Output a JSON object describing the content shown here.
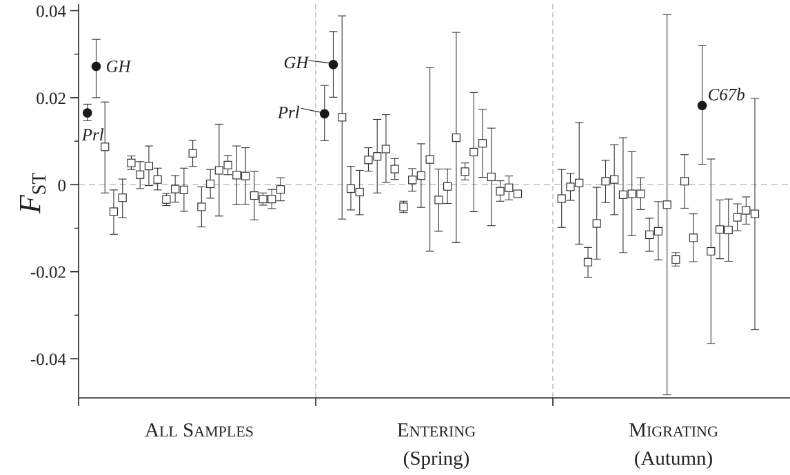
{
  "chart_data": {
    "type": "scatter",
    "title": "",
    "ylabel": "F",
    "ylabel_sub": "ST",
    "ylim": [
      -0.049,
      0.0415
    ],
    "yticks": [
      {
        "value": 0.04,
        "label": "0.04"
      },
      {
        "value": 0.02,
        "label": "0.02"
      },
      {
        "value": 0,
        "label": "0"
      },
      {
        "value": -0.02,
        "label": "-0.02"
      },
      {
        "value": -0.04,
        "label": "-0.04"
      }
    ],
    "zero_line": true,
    "groups": [
      {
        "line1": "ALL SAMPLES",
        "line2": "",
        "from": 0,
        "to": 27
      },
      {
        "line1": "ENTERING",
        "line2": "(Spring)",
        "from": 27,
        "to": 54
      },
      {
        "line1": "MIGRATING",
        "line2": "(Autumn)",
        "from": 54,
        "to": 81
      }
    ],
    "points": [
      {
        "x": 1,
        "y": 0.0165,
        "lo": 0.0147,
        "hi": 0.0185,
        "filled": true
      },
      {
        "x": 2,
        "y": 0.0272,
        "lo": 0.02,
        "hi": 0.0334,
        "filled": true
      },
      {
        "x": 3,
        "y": 0.0087,
        "lo": -0.0019,
        "hi": 0.019,
        "filled": false
      },
      {
        "x": 4,
        "y": -0.0062,
        "lo": -0.0114,
        "hi": -0.0012,
        "filled": false
      },
      {
        "x": 5,
        "y": -0.003,
        "lo": -0.0076,
        "hi": 0.0013,
        "filled": false
      },
      {
        "x": 6,
        "y": 0.005,
        "lo": 0.0035,
        "hi": 0.0066,
        "filled": false
      },
      {
        "x": 7,
        "y": 0.0023,
        "lo": -0.0009,
        "hi": 0.0053,
        "filled": false
      },
      {
        "x": 8,
        "y": 0.0043,
        "lo": -0.0002,
        "hi": 0.0089,
        "filled": false
      },
      {
        "x": 9,
        "y": 0.0012,
        "lo": -0.0012,
        "hi": 0.0038,
        "filled": false
      },
      {
        "x": 10,
        "y": -0.0034,
        "lo": -0.0048,
        "hi": -0.002,
        "filled": false
      },
      {
        "x": 11,
        "y": -0.001,
        "lo": -0.004,
        "hi": 0.0021,
        "filled": false
      },
      {
        "x": 12,
        "y": -0.0012,
        "lo": -0.0061,
        "hi": 0.0038,
        "filled": false
      },
      {
        "x": 13,
        "y": 0.0072,
        "lo": 0.0042,
        "hi": 0.0102,
        "filled": false
      },
      {
        "x": 14,
        "y": -0.0051,
        "lo": -0.0097,
        "hi": -0.0005,
        "filled": false
      },
      {
        "x": 15,
        "y": 0.0002,
        "lo": -0.0031,
        "hi": 0.0035,
        "filled": false
      },
      {
        "x": 16,
        "y": 0.0033,
        "lo": -0.0072,
        "hi": 0.0139,
        "filled": false
      },
      {
        "x": 17,
        "y": 0.0045,
        "lo": 0.0023,
        "hi": 0.0067,
        "filled": false
      },
      {
        "x": 18,
        "y": 0.0022,
        "lo": -0.0046,
        "hi": 0.0089,
        "filled": false
      },
      {
        "x": 19,
        "y": 0.002,
        "lo": -0.0045,
        "hi": 0.0085,
        "filled": false
      },
      {
        "x": 20,
        "y": -0.0025,
        "lo": -0.0081,
        "hi": 0.0031,
        "filled": false
      },
      {
        "x": 21,
        "y": -0.0033,
        "lo": -0.0047,
        "hi": -0.0019,
        "filled": false
      },
      {
        "x": 22,
        "y": -0.0033,
        "lo": -0.0055,
        "hi": -0.0011,
        "filled": false
      },
      {
        "x": 23,
        "y": -0.0011,
        "lo": -0.0037,
        "hi": 0.0016,
        "filled": false
      },
      {
        "x": 28,
        "y": 0.0163,
        "lo": 0.0101,
        "hi": 0.0228,
        "filled": true
      },
      {
        "x": 29,
        "y": 0.0276,
        "lo": 0.0201,
        "hi": 0.0352,
        "filled": true
      },
      {
        "x": 30,
        "y": 0.0155,
        "lo": -0.0079,
        "hi": 0.0388,
        "filled": false
      },
      {
        "x": 31,
        "y": -0.0009,
        "lo": -0.0058,
        "hi": 0.0042,
        "filled": false
      },
      {
        "x": 32,
        "y": -0.0017,
        "lo": -0.0069,
        "hi": 0.0033,
        "filled": false
      },
      {
        "x": 33,
        "y": 0.0057,
        "lo": 0.0031,
        "hi": 0.0085,
        "filled": false
      },
      {
        "x": 34,
        "y": 0.0065,
        "lo": -0.0019,
        "hi": 0.015,
        "filled": false
      },
      {
        "x": 35,
        "y": 0.0082,
        "lo": 0.0005,
        "hi": 0.0161,
        "filled": false
      },
      {
        "x": 36,
        "y": 0.0036,
        "lo": 0.0012,
        "hi": 0.006,
        "filled": false
      },
      {
        "x": 37,
        "y": -0.0051,
        "lo": -0.0064,
        "hi": -0.0038,
        "filled": false
      },
      {
        "x": 38,
        "y": 0.0011,
        "lo": -0.0015,
        "hi": 0.0037,
        "filled": false
      },
      {
        "x": 39,
        "y": 0.0021,
        "lo": -0.0052,
        "hi": 0.0094,
        "filled": false
      },
      {
        "x": 40,
        "y": 0.0058,
        "lo": -0.0153,
        "hi": 0.0269,
        "filled": false
      },
      {
        "x": 41,
        "y": -0.0035,
        "lo": -0.0107,
        "hi": 0.0036,
        "filled": false
      },
      {
        "x": 42,
        "y": -0.0004,
        "lo": -0.0043,
        "hi": 0.0036,
        "filled": false
      },
      {
        "x": 43,
        "y": 0.0108,
        "lo": -0.0133,
        "hi": 0.035,
        "filled": false
      },
      {
        "x": 44,
        "y": 0.003,
        "lo": 0.0011,
        "hi": 0.005,
        "filled": false
      },
      {
        "x": 45,
        "y": 0.0075,
        "lo": -0.0062,
        "hi": 0.0212,
        "filled": false
      },
      {
        "x": 46,
        "y": 0.0095,
        "lo": 0.0017,
        "hi": 0.0173,
        "filled": false
      },
      {
        "x": 47,
        "y": 0.0018,
        "lo": -0.0094,
        "hi": 0.013,
        "filled": false
      },
      {
        "x": 48,
        "y": -0.0015,
        "lo": -0.0038,
        "hi": 0.0009,
        "filled": false
      },
      {
        "x": 49,
        "y": -0.0007,
        "lo": -0.0035,
        "hi": 0.002,
        "filled": false
      },
      {
        "x": 50,
        "y": -0.0021,
        "lo": -0.0027,
        "hi": -0.0015,
        "filled": false
      },
      {
        "x": 55,
        "y": -0.0032,
        "lo": -0.0098,
        "hi": 0.0035,
        "filled": false
      },
      {
        "x": 56,
        "y": -0.0005,
        "lo": -0.0036,
        "hi": 0.0026,
        "filled": false
      },
      {
        "x": 57,
        "y": 0.0004,
        "lo": -0.0137,
        "hi": 0.0143,
        "filled": false
      },
      {
        "x": 58,
        "y": -0.0178,
        "lo": -0.0213,
        "hi": -0.0144,
        "filled": false
      },
      {
        "x": 59,
        "y": -0.0089,
        "lo": -0.0171,
        "hi": -0.0006,
        "filled": false
      },
      {
        "x": 60,
        "y": 0.0008,
        "lo": -0.0041,
        "hi": 0.0056,
        "filled": false
      },
      {
        "x": 61,
        "y": 0.0012,
        "lo": -0.0069,
        "hi": 0.0092,
        "filled": false
      },
      {
        "x": 62,
        "y": -0.0023,
        "lo": -0.0156,
        "hi": 0.0108,
        "filled": false
      },
      {
        "x": 63,
        "y": -0.0021,
        "lo": -0.0117,
        "hi": 0.0076,
        "filled": false
      },
      {
        "x": 64,
        "y": -0.0021,
        "lo": -0.0057,
        "hi": 0.0016,
        "filled": false
      },
      {
        "x": 65,
        "y": -0.0115,
        "lo": -0.0153,
        "hi": -0.0077,
        "filled": false
      },
      {
        "x": 66,
        "y": -0.0107,
        "lo": -0.0173,
        "hi": -0.0039,
        "filled": false
      },
      {
        "x": 67,
        "y": -0.0046,
        "lo": -0.0483,
        "hi": 0.0391,
        "filled": false
      },
      {
        "x": 68,
        "y": -0.0172,
        "lo": -0.0187,
        "hi": -0.0156,
        "filled": false
      },
      {
        "x": 69,
        "y": 0.0008,
        "lo": -0.0054,
        "hi": 0.0069,
        "filled": false
      },
      {
        "x": 70,
        "y": -0.0122,
        "lo": -0.0177,
        "hi": -0.0067,
        "filled": false
      },
      {
        "x": 71,
        "y": 0.0182,
        "lo": 0.0047,
        "hi": 0.032,
        "filled": true
      },
      {
        "x": 72,
        "y": -0.0153,
        "lo": -0.0365,
        "hi": 0.0059,
        "filled": false
      },
      {
        "x": 73,
        "y": -0.0103,
        "lo": -0.017,
        "hi": -0.0035,
        "filled": false
      },
      {
        "x": 74,
        "y": -0.0104,
        "lo": -0.0176,
        "hi": -0.0033,
        "filled": false
      },
      {
        "x": 75,
        "y": -0.0075,
        "lo": -0.0106,
        "hi": -0.0044,
        "filled": false
      },
      {
        "x": 76,
        "y": -0.0059,
        "lo": -0.0091,
        "hi": -0.0028,
        "filled": false
      },
      {
        "x": 77,
        "y": -0.0067,
        "lo": -0.0333,
        "hi": 0.0198,
        "filled": false
      }
    ],
    "annotations": [
      {
        "text": "Prl",
        "x": 1
      },
      {
        "text": "GH",
        "x": 2
      },
      {
        "text": "GH",
        "x": 29
      },
      {
        "text": "Prl",
        "x": 28
      },
      {
        "text": "C67b",
        "x": 71
      }
    ]
  }
}
